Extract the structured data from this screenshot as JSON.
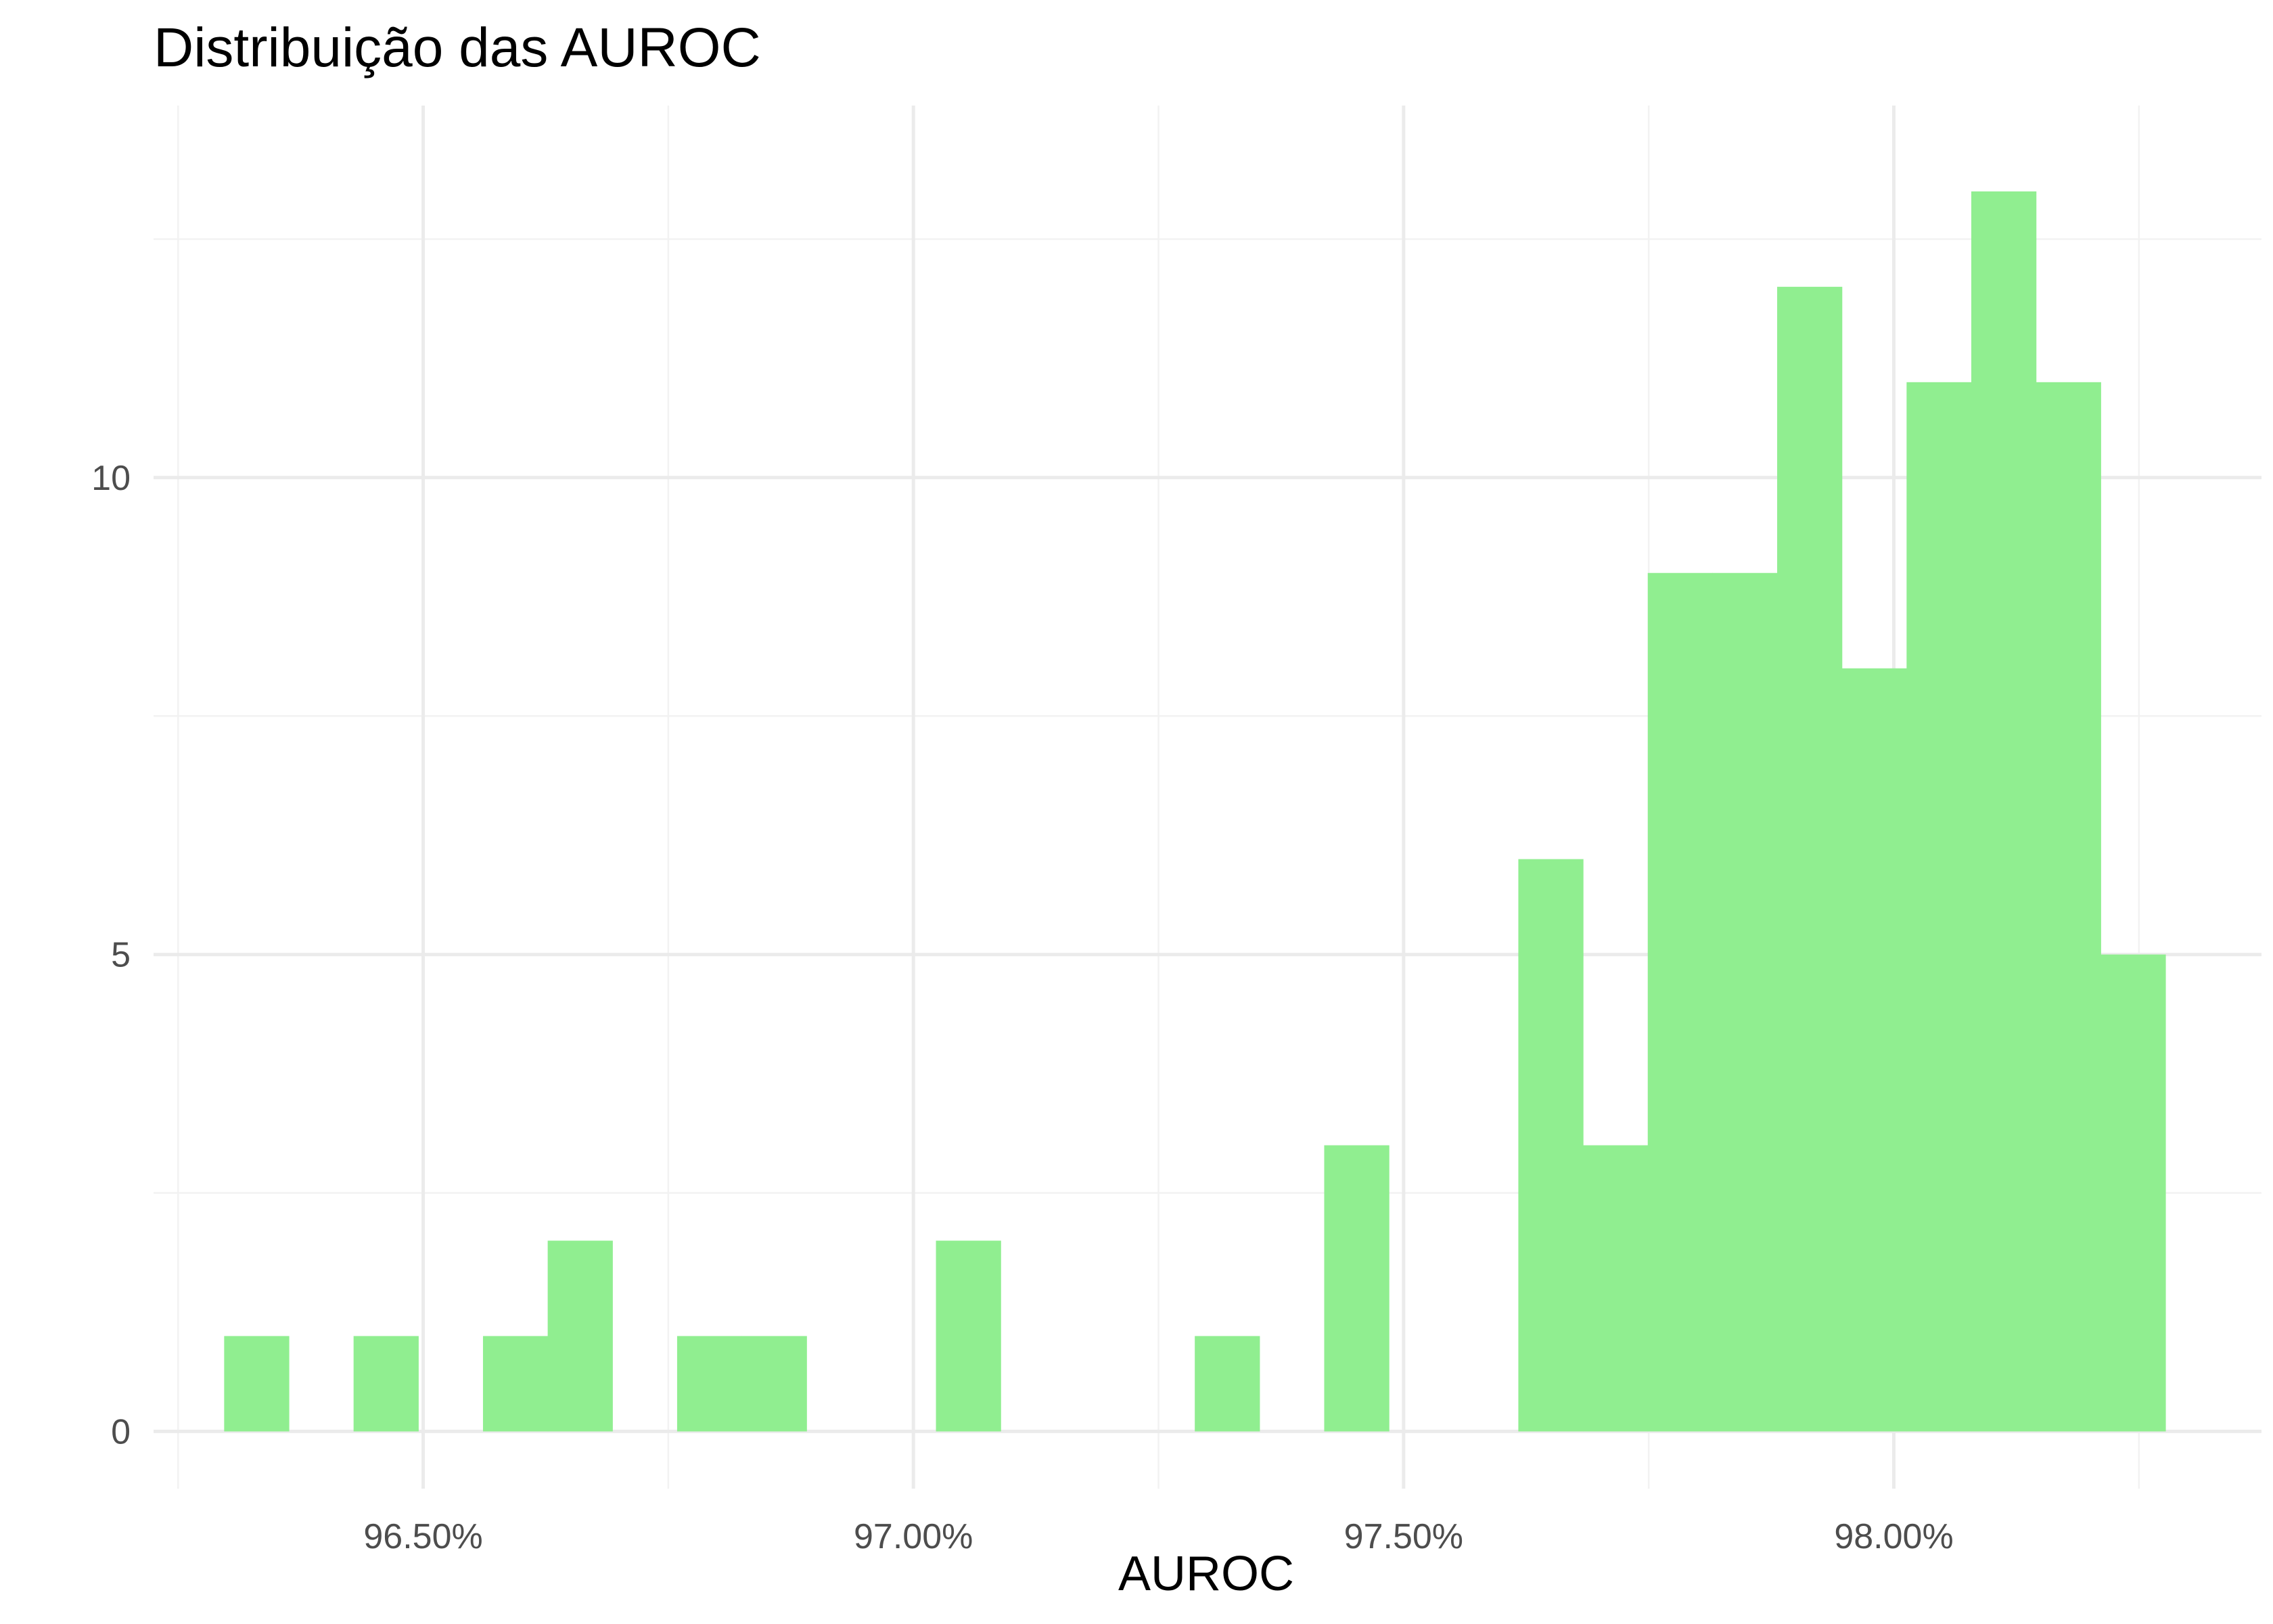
{
  "chart_data": {
    "type": "bar",
    "title": "Distribuição das AUROC",
    "xlabel": "AUROC",
    "ylabel": "",
    "bar_color": "#90ee90",
    "grid": true,
    "x_tick_values": [
      0.965,
      0.97,
      0.975,
      0.98
    ],
    "x_tick_labels": [
      "96.50%",
      "97.00%",
      "97.50%",
      "98.00%"
    ],
    "x_minor_ticks": [
      0.9625,
      0.9675,
      0.9725,
      0.9775,
      0.9825
    ],
    "y_tick_values": [
      0,
      5,
      10
    ],
    "y_tick_labels": [
      "0",
      "5",
      "10"
    ],
    "y_minor_ticks": [
      2.5,
      7.5,
      12.5
    ],
    "xlim": [
      0.96225,
      0.98375
    ],
    "ylim": [
      -0.6,
      13.9
    ],
    "bin_width": 0.00066,
    "bins": [
      {
        "start": 0.96297,
        "count": 1
      },
      {
        "start": 0.96363,
        "count": 0
      },
      {
        "start": 0.96429,
        "count": 1
      },
      {
        "start": 0.96495,
        "count": 0
      },
      {
        "start": 0.96561,
        "count": 1
      },
      {
        "start": 0.96627,
        "count": 2
      },
      {
        "start": 0.96693,
        "count": 0
      },
      {
        "start": 0.96759,
        "count": 1
      },
      {
        "start": 0.96825,
        "count": 1
      },
      {
        "start": 0.96891,
        "count": 0
      },
      {
        "start": 0.96957,
        "count": 0
      },
      {
        "start": 0.97023,
        "count": 2
      },
      {
        "start": 0.97089,
        "count": 0
      },
      {
        "start": 0.97155,
        "count": 0
      },
      {
        "start": 0.97221,
        "count": 0
      },
      {
        "start": 0.97287,
        "count": 1
      },
      {
        "start": 0.97353,
        "count": 0
      },
      {
        "start": 0.97419,
        "count": 3
      },
      {
        "start": 0.97485,
        "count": 0
      },
      {
        "start": 0.97551,
        "count": 0
      },
      {
        "start": 0.97617,
        "count": 6
      },
      {
        "start": 0.97683,
        "count": 3
      },
      {
        "start": 0.97749,
        "count": 9
      },
      {
        "start": 0.97815,
        "count": 9
      },
      {
        "start": 0.97881,
        "count": 12
      },
      {
        "start": 0.97947,
        "count": 8
      },
      {
        "start": 0.98013,
        "count": 11
      },
      {
        "start": 0.98079,
        "count": 13
      },
      {
        "start": 0.98145,
        "count": 11
      },
      {
        "start": 0.98211,
        "count": 5
      }
    ]
  }
}
